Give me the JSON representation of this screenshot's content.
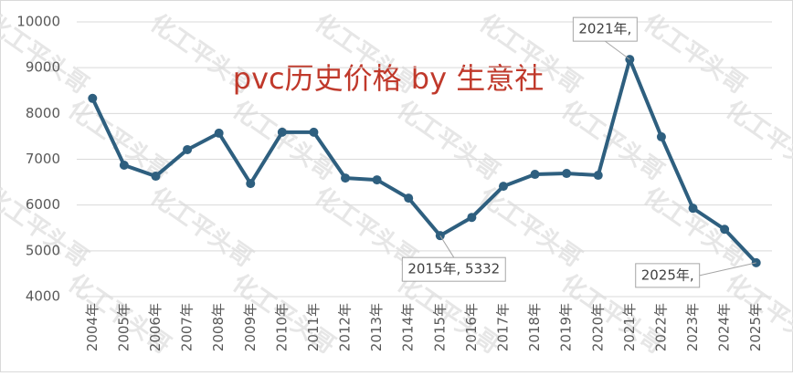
{
  "chart_data": {
    "type": "line",
    "title": "pvc历史价格 by 生意社",
    "watermark": "化工平头哥",
    "categories": [
      "2004年",
      "2005年",
      "2006年",
      "2007年",
      "2008年",
      "2009年",
      "2010年",
      "2011年",
      "2012年",
      "2013年",
      "2014年",
      "2015年",
      "2016年",
      "2017年",
      "2018年",
      "2019年",
      "2020年",
      "2021年",
      "2022年",
      "2023年",
      "2024年",
      "2025年"
    ],
    "series": [
      {
        "color": "#2e5f7f",
        "values": [
          8330,
          6870,
          6630,
          7210,
          7570,
          6470,
          7590,
          7590,
          6590,
          6550,
          6150,
          5332,
          5730,
          6410,
          6670,
          6690,
          6650,
          9180,
          7490,
          5930,
          5470,
          4740
        ],
        "value_labels": [
          null,
          null,
          null,
          null,
          null,
          null,
          null,
          null,
          null,
          null,
          null,
          "2015年, 5332",
          null,
          null,
          null,
          null,
          null,
          "2021年,",
          null,
          null,
          null,
          "2025年,"
        ]
      }
    ],
    "ylim": [
      4000,
      10000
    ],
    "yticks": [
      4000,
      5000,
      6000,
      7000,
      8000,
      9000,
      10000
    ],
    "grid": true,
    "title_color": "#c0392b"
  }
}
